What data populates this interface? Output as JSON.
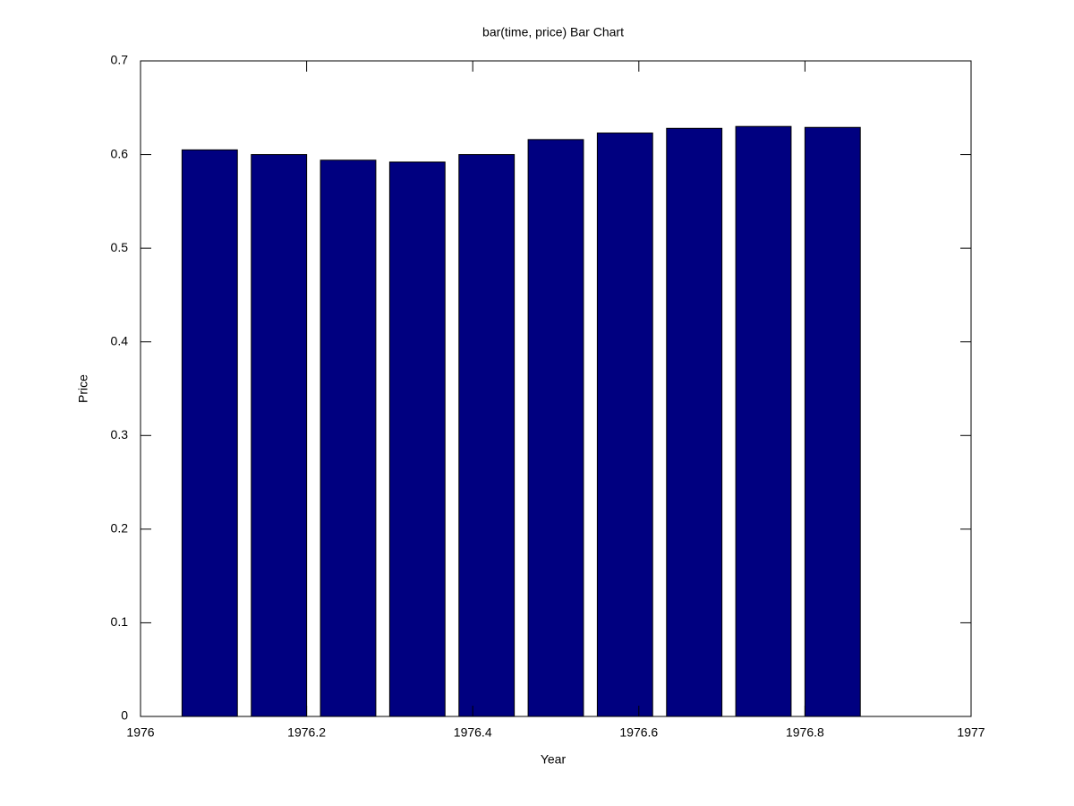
{
  "chart_data": {
    "type": "bar",
    "title": "bar(time, price)  Bar Chart",
    "x_label": "Year",
    "y_label": "Price",
    "x": [
      1976.0833,
      1976.1667,
      1976.25,
      1976.3333,
      1976.4167,
      1976.5,
      1976.5833,
      1976.6667,
      1976.75,
      1976.8333
    ],
    "values": [
      0.605,
      0.6,
      0.594,
      0.592,
      0.6,
      0.616,
      0.623,
      0.628,
      0.63,
      0.629
    ],
    "color": "#000080",
    "xlim": [
      1976,
      1977
    ],
    "xticks": [
      1976,
      1976.2,
      1976.4,
      1976.6,
      1976.8,
      1977
    ],
    "ylim": [
      0,
      0.7
    ],
    "yticks": [
      0,
      0.1,
      0.2,
      0.3,
      0.4,
      0.5,
      0.6,
      0.7
    ],
    "grid": false
  }
}
